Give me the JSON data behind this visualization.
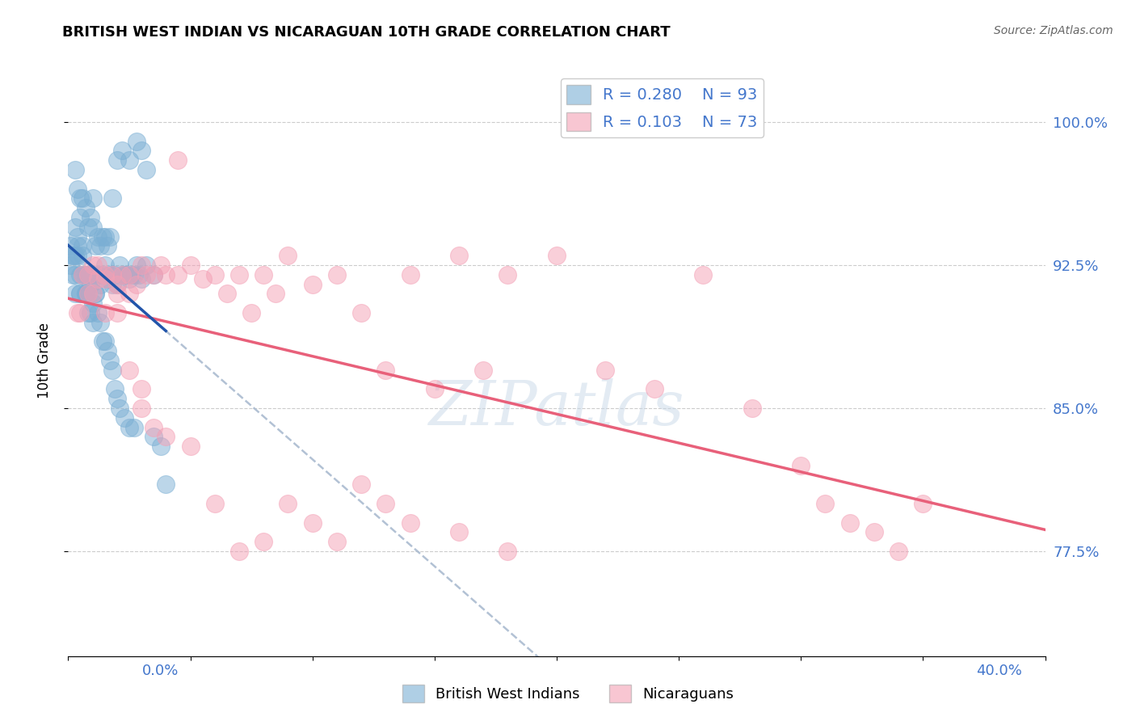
{
  "title": "BRITISH WEST INDIAN VS NICARAGUAN 10TH GRADE CORRELATION CHART",
  "source_text": "Source: ZipAtlas.com",
  "ylabel": "10th Grade",
  "ytick_labels": [
    "77.5%",
    "85.0%",
    "92.5%",
    "100.0%"
  ],
  "ytick_values": [
    77.5,
    85.0,
    92.5,
    100.0
  ],
  "xlim": [
    0.0,
    40.0
  ],
  "ylim": [
    72.0,
    103.0
  ],
  "legend_r1": "R = 0.280",
  "legend_n1": "N = 93",
  "legend_r2": "R = 0.103",
  "legend_n2": "N = 73",
  "color_blue": "#7BAFD4",
  "color_pink": "#F4A0B5",
  "trend_blue_solid": "#2255AA",
  "trend_pink_solid": "#E8607A",
  "trend_blue_dashed_color": "#AABBD0",
  "blue_x": [
    0.3,
    0.4,
    0.5,
    0.5,
    0.6,
    0.7,
    0.8,
    0.9,
    1.0,
    1.0,
    1.1,
    1.2,
    1.3,
    1.4,
    1.5,
    1.6,
    1.7,
    1.8,
    2.0,
    2.2,
    2.5,
    2.8,
    3.0,
    3.2,
    3.5,
    0.1,
    0.1,
    0.2,
    0.2,
    0.3,
    0.3,
    0.3,
    0.4,
    0.4,
    0.5,
    0.5,
    0.6,
    0.6,
    0.7,
    0.7,
    0.8,
    0.8,
    0.9,
    0.9,
    1.0,
    1.0,
    1.1,
    1.2,
    1.3,
    1.4,
    1.5,
    1.6,
    1.7,
    1.8,
    1.9,
    2.0,
    2.1,
    2.3,
    2.5,
    2.7,
    0.2,
    0.3,
    0.4,
    0.5,
    0.6,
    0.7,
    0.8,
    0.9,
    1.0,
    1.1,
    1.2,
    1.3,
    1.4,
    1.5,
    1.6,
    1.7,
    1.8,
    1.9,
    2.0,
    2.1,
    2.2,
    2.3,
    2.4,
    2.5,
    2.6,
    2.7,
    2.8,
    2.9,
    3.0,
    3.2,
    3.5,
    3.8,
    4.0
  ],
  "blue_y": [
    97.5,
    96.5,
    96.0,
    95.0,
    96.0,
    95.5,
    94.5,
    95.0,
    96.0,
    94.5,
    93.5,
    94.0,
    93.5,
    94.0,
    94.0,
    93.5,
    94.0,
    96.0,
    98.0,
    98.5,
    98.0,
    99.0,
    98.5,
    97.5,
    92.0,
    93.5,
    92.5,
    93.0,
    92.0,
    91.0,
    94.5,
    93.0,
    94.0,
    93.5,
    92.0,
    91.0,
    93.5,
    93.0,
    92.0,
    91.0,
    90.0,
    91.0,
    90.0,
    92.0,
    90.5,
    89.5,
    91.0,
    90.0,
    89.5,
    88.5,
    88.5,
    88.0,
    87.5,
    87.0,
    86.0,
    85.5,
    85.0,
    84.5,
    84.0,
    84.0,
    93.0,
    92.0,
    93.0,
    91.0,
    92.0,
    91.0,
    92.0,
    91.5,
    92.0,
    91.0,
    92.0,
    91.5,
    92.0,
    92.5,
    91.8,
    92.0,
    91.5,
    92.0,
    91.5,
    92.5,
    92.0,
    92.0,
    92.0,
    91.8,
    92.0,
    92.0,
    92.5,
    92.0,
    91.8,
    92.5,
    83.5,
    83.0,
    81.0
  ],
  "pink_x": [
    0.5,
    0.8,
    1.0,
    1.2,
    1.5,
    1.8,
    2.0,
    2.2,
    2.5,
    2.8,
    3.0,
    3.2,
    3.5,
    3.8,
    4.0,
    4.5,
    5.0,
    5.5,
    6.0,
    6.5,
    7.0,
    7.5,
    8.0,
    8.5,
    9.0,
    10.0,
    11.0,
    12.0,
    13.0,
    14.0,
    15.0,
    16.0,
    17.0,
    18.0,
    20.0,
    22.0,
    24.0,
    26.0,
    28.0,
    30.0,
    31.0,
    32.0,
    33.0,
    34.0,
    35.0,
    1.5,
    2.0,
    2.5,
    3.0,
    3.5,
    4.0,
    5.0,
    6.0,
    7.0,
    8.0,
    9.0,
    10.0,
    11.0,
    12.0,
    13.0,
    14.0,
    16.0,
    18.0,
    0.4,
    0.6,
    0.8,
    1.0,
    1.2,
    1.5,
    2.0,
    2.5,
    3.0,
    4.5
  ],
  "pink_y": [
    90.0,
    92.0,
    91.0,
    92.5,
    91.8,
    92.0,
    91.5,
    92.0,
    92.0,
    91.5,
    92.5,
    92.0,
    92.0,
    92.5,
    92.0,
    92.0,
    92.5,
    91.8,
    92.0,
    91.0,
    92.0,
    90.0,
    92.0,
    91.0,
    93.0,
    91.5,
    92.0,
    90.0,
    87.0,
    92.0,
    86.0,
    93.0,
    87.0,
    92.0,
    93.0,
    87.0,
    86.0,
    92.0,
    85.0,
    82.0,
    80.0,
    79.0,
    78.5,
    77.5,
    80.0,
    92.0,
    90.0,
    87.0,
    86.0,
    84.0,
    83.5,
    83.0,
    80.0,
    77.5,
    78.0,
    80.0,
    79.0,
    78.0,
    81.0,
    80.0,
    79.0,
    78.5,
    77.5,
    90.0,
    92.0,
    91.0,
    92.5,
    91.8,
    90.0,
    91.0,
    91.0,
    85.0,
    98.0
  ]
}
